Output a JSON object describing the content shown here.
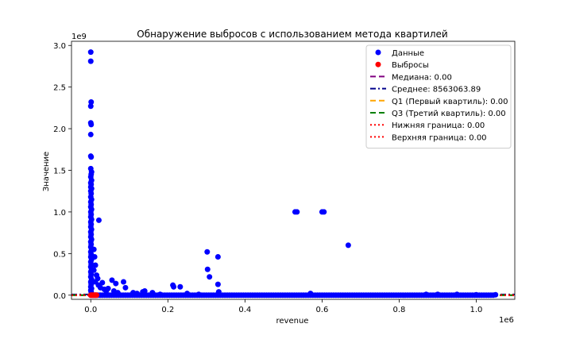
{
  "chart_data": {
    "type": "scatter",
    "title": "Обнаружение выбросов с использованием метода квартилей",
    "xlabel": "revenue",
    "ylabel": "Значение",
    "x_offset_label": "1e6",
    "y_offset_label": "1e9",
    "xlim": [
      -0.05,
      1.1
    ],
    "ylim": [
      -0.05,
      3.05
    ],
    "xticks": [
      0.0,
      0.2,
      0.4,
      0.6,
      0.8,
      1.0
    ],
    "xtick_labels": [
      "0.0",
      "0.2",
      "0.4",
      "0.6",
      "0.8",
      "1.0"
    ],
    "yticks": [
      0.0,
      0.5,
      1.0,
      1.5,
      2.0,
      2.5,
      3.0
    ],
    "ytick_labels": [
      "0.0",
      "0.5",
      "1.0",
      "1.5",
      "2.0",
      "2.5",
      "3.0"
    ],
    "grid": false,
    "legend_position": "top-right",
    "series": [
      {
        "name": "Данные",
        "color": "#0000ff",
        "kind": "scatter",
        "points": [
          [
            0.0,
            2.92
          ],
          [
            0.0,
            2.81
          ],
          [
            0.001,
            2.32
          ],
          [
            0.0,
            2.27
          ],
          [
            0.0,
            2.07
          ],
          [
            0.001,
            2.05
          ],
          [
            0.0,
            1.93
          ],
          [
            0.0,
            1.67
          ],
          [
            0.001,
            1.66
          ],
          [
            0.0,
            1.52
          ],
          [
            0.002,
            1.48
          ],
          [
            0.001,
            1.45
          ],
          [
            0.0,
            1.42
          ],
          [
            0.002,
            1.38
          ],
          [
            0.0,
            1.35
          ],
          [
            0.001,
            1.33
          ],
          [
            0.0,
            1.3
          ],
          [
            0.002,
            1.28
          ],
          [
            0.0,
            1.25
          ],
          [
            0.001,
            1.22
          ],
          [
            0.0,
            1.18
          ],
          [
            0.002,
            1.15
          ],
          [
            0.0,
            1.12
          ],
          [
            0.001,
            1.09
          ],
          [
            0.0,
            1.06
          ],
          [
            0.002,
            1.03
          ],
          [
            0.0,
            1.0
          ],
          [
            0.001,
            0.97
          ],
          [
            0.0,
            0.94
          ],
          [
            0.002,
            0.91
          ],
          [
            0.0,
            0.88
          ],
          [
            0.001,
            0.85
          ],
          [
            0.0,
            0.82
          ],
          [
            0.002,
            0.79
          ],
          [
            0.0,
            0.76
          ],
          [
            0.001,
            0.73
          ],
          [
            0.0,
            0.7
          ],
          [
            0.002,
            0.67
          ],
          [
            0.0,
            0.64
          ],
          [
            0.001,
            0.61
          ],
          [
            0.0,
            0.58
          ],
          [
            0.002,
            0.55
          ],
          [
            0.0,
            0.52
          ],
          [
            0.001,
            0.49
          ],
          [
            0.0,
            0.46
          ],
          [
            0.002,
            0.43
          ],
          [
            0.0,
            0.4
          ],
          [
            0.001,
            0.37
          ],
          [
            0.0,
            0.34
          ],
          [
            0.002,
            0.31
          ],
          [
            0.0,
            0.28
          ],
          [
            0.001,
            0.25
          ],
          [
            0.0,
            0.22
          ],
          [
            0.002,
            0.19
          ],
          [
            0.0,
            0.16
          ],
          [
            0.001,
            0.13
          ],
          [
            0.0,
            0.1
          ],
          [
            0.002,
            0.08
          ],
          [
            0.0,
            0.06
          ],
          [
            0.001,
            0.04
          ],
          [
            0.008,
            0.55
          ],
          [
            0.01,
            0.46
          ],
          [
            0.012,
            0.36
          ],
          [
            0.008,
            0.3
          ],
          [
            0.015,
            0.24
          ],
          [
            0.018,
            0.2
          ],
          [
            0.021,
            0.9
          ],
          [
            0.012,
            0.16
          ],
          [
            0.02,
            0.12
          ],
          [
            0.025,
            0.09
          ],
          [
            0.03,
            0.15
          ],
          [
            0.035,
            0.07
          ],
          [
            0.04,
            0.05
          ],
          [
            0.045,
            0.08
          ],
          [
            0.055,
            0.18
          ],
          [
            0.06,
            0.05
          ],
          [
            0.065,
            0.14
          ],
          [
            0.07,
            0.03
          ],
          [
            0.085,
            0.16
          ],
          [
            0.09,
            0.09
          ],
          [
            0.11,
            0.03
          ],
          [
            0.12,
            0.02
          ],
          [
            0.135,
            0.04
          ],
          [
            0.14,
            0.05
          ],
          [
            0.16,
            0.03
          ],
          [
            0.18,
            0.01
          ],
          [
            0.213,
            0.12
          ],
          [
            0.215,
            0.1
          ],
          [
            0.232,
            0.1
          ],
          [
            0.25,
            0.02
          ],
          [
            0.28,
            0.01
          ],
          [
            0.302,
            0.52
          ],
          [
            0.303,
            0.31
          ],
          [
            0.308,
            0.22
          ],
          [
            0.33,
            0.46
          ],
          [
            0.33,
            0.13
          ],
          [
            0.332,
            0.04
          ],
          [
            0.53,
            1.0
          ],
          [
            0.535,
            1.0
          ],
          [
            0.6,
            1.0
          ],
          [
            0.605,
            1.0
          ],
          [
            0.668,
            0.6
          ],
          [
            0.57,
            0.02
          ],
          [
            0.87,
            0.01
          ],
          [
            0.9,
            0.01
          ],
          [
            0.95,
            0.01
          ],
          [
            1.0,
            0.005
          ],
          [
            1.05,
            0.005
          ]
        ]
      },
      {
        "name": "Выбросы",
        "color": "#ff0000",
        "kind": "scatter",
        "points": [
          [
            0.0,
            0.0
          ],
          [
            0.003,
            0.0
          ],
          [
            0.006,
            0.0
          ],
          [
            0.009,
            0.0
          ],
          [
            0.012,
            0.0
          ],
          [
            0.015,
            0.0
          ]
        ]
      },
      {
        "name": "Медиана: 0.00",
        "color": "#800080",
        "kind": "hline",
        "style": "dashed",
        "y": 0.0
      },
      {
        "name": "Среднее: 8563063.89",
        "color": "#00008b",
        "kind": "hline",
        "style": "dashdot",
        "y": 0.00856
      },
      {
        "name": "Q1 (Первый квартиль): 0.00",
        "color": "#ffa500",
        "kind": "hline",
        "style": "dashed",
        "y": 0.0
      },
      {
        "name": "Q3 (Третий квартиль): 0.00",
        "color": "#008000",
        "kind": "hline",
        "style": "dashed",
        "y": 0.0
      },
      {
        "name": "Нижняя граница: 0.00",
        "color": "#ff0000",
        "kind": "hline",
        "style": "dotted",
        "y": 0.0
      },
      {
        "name": "Верхняя граница: 0.00",
        "color": "#ff0000",
        "kind": "hline",
        "style": "dotted",
        "y": 0.0
      }
    ]
  }
}
